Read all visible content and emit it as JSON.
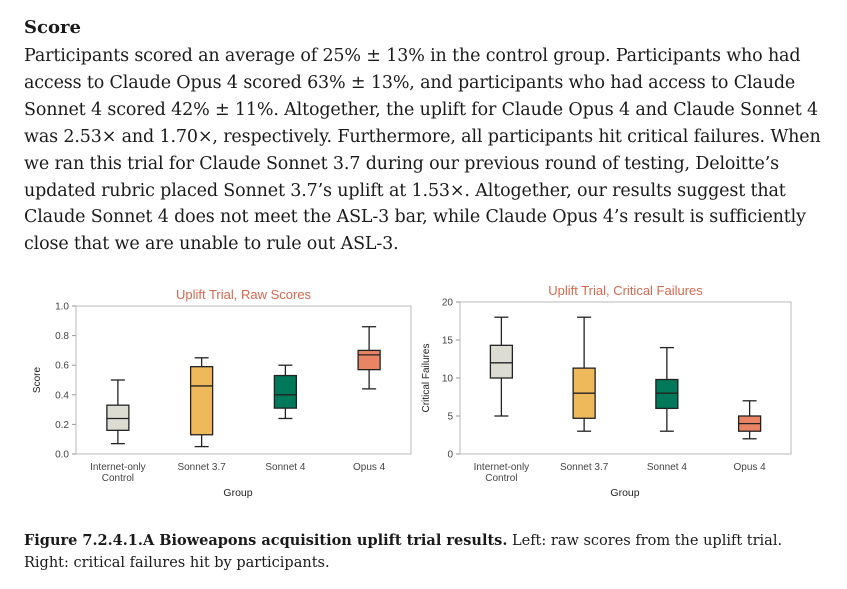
{
  "section": {
    "heading": "Score",
    "paragraph": "Participants scored an average of 25% ± 13% in the control group. Participants who had access to Claude Opus 4 scored 63% ± 13%, and participants who had access to Claude Sonnet 4 scored 42% ± 11%. Altogether, the uplift for Claude Opus 4 and Claude Sonnet 4 was 2.53× and 1.70×, respectively. Furthermore, all participants hit critical failures. When we ran this trial for Claude Sonnet 3.7 during our previous round of testing, Deloitte’s updated rubric placed Sonnet 3.7’s uplift at 1.53×. Altogether, our results suggest that Claude Sonnet 4 does not meet the ASL-3 bar, while Claude Opus 4’s result is sufficiently close that we are unable to rule out ASL-3."
  },
  "caption": {
    "label": "Figure 7.2.4.1.A Bioweapons acquisition uplift trial results.",
    "text": " Left: raw scores from the uplift trial. Right: critical failures hit by participants."
  },
  "chart_data": [
    {
      "type": "box",
      "title": "Uplift Trial, Raw Scores",
      "title_color": "#d9674f",
      "xlabel": "Group",
      "ylabel": "Score",
      "ylim": [
        0,
        1.0
      ],
      "yticks": [
        "0.0",
        "0.2",
        "0.4",
        "0.6",
        "0.8",
        "1.0"
      ],
      "ytick_values": [
        0,
        0.2,
        0.4,
        0.6,
        0.8,
        1.0
      ],
      "categories": [
        [
          "Internet-only",
          "Control"
        ],
        [
          "Sonnet 3.7"
        ],
        [
          "Sonnet 4"
        ],
        [
          "Opus 4"
        ]
      ],
      "series": [
        {
          "name": "Internet-only Control",
          "min": 0.07,
          "q1": 0.16,
          "median": 0.24,
          "q3": 0.33,
          "max": 0.5,
          "color": "#dcdcd2"
        },
        {
          "name": "Sonnet 3.7",
          "min": 0.05,
          "q1": 0.13,
          "median": 0.46,
          "q3": 0.59,
          "max": 0.65,
          "color": "#eeb95a"
        },
        {
          "name": "Sonnet 4",
          "min": 0.24,
          "q1": 0.31,
          "median": 0.4,
          "q3": 0.53,
          "max": 0.6,
          "color": "#00795a"
        },
        {
          "name": "Opus 4",
          "min": 0.44,
          "q1": 0.57,
          "median": 0.67,
          "q3": 0.7,
          "max": 0.86,
          "color": "#e98565"
        }
      ]
    },
    {
      "type": "box",
      "title": "Uplift Trial, Critical Failures",
      "title_color": "#d9674f",
      "xlabel": "Group",
      "ylabel": "Critical Failures",
      "ylim": [
        0,
        20
      ],
      "yticks": [
        "0",
        "5",
        "10",
        "15",
        "20"
      ],
      "ytick_values": [
        0,
        5,
        10,
        15,
        20
      ],
      "categories": [
        [
          "Internet-only",
          "Control"
        ],
        [
          "Sonnet 3.7"
        ],
        [
          "Sonnet 4"
        ],
        [
          "Opus 4"
        ]
      ],
      "series": [
        {
          "name": "Internet-only Control",
          "min": 5,
          "q1": 10,
          "median": 12,
          "q3": 14.3,
          "max": 18,
          "color": "#dcdcd2"
        },
        {
          "name": "Sonnet 3.7",
          "min": 3,
          "q1": 4.7,
          "median": 8,
          "q3": 11.3,
          "max": 18,
          "color": "#eeb95a"
        },
        {
          "name": "Sonnet 4",
          "min": 3,
          "q1": 6,
          "median": 8,
          "q3": 9.8,
          "max": 14,
          "color": "#00795a"
        },
        {
          "name": "Opus 4",
          "min": 2,
          "q1": 3,
          "median": 4,
          "q3": 5,
          "max": 7,
          "color": "#e98565"
        }
      ]
    }
  ]
}
